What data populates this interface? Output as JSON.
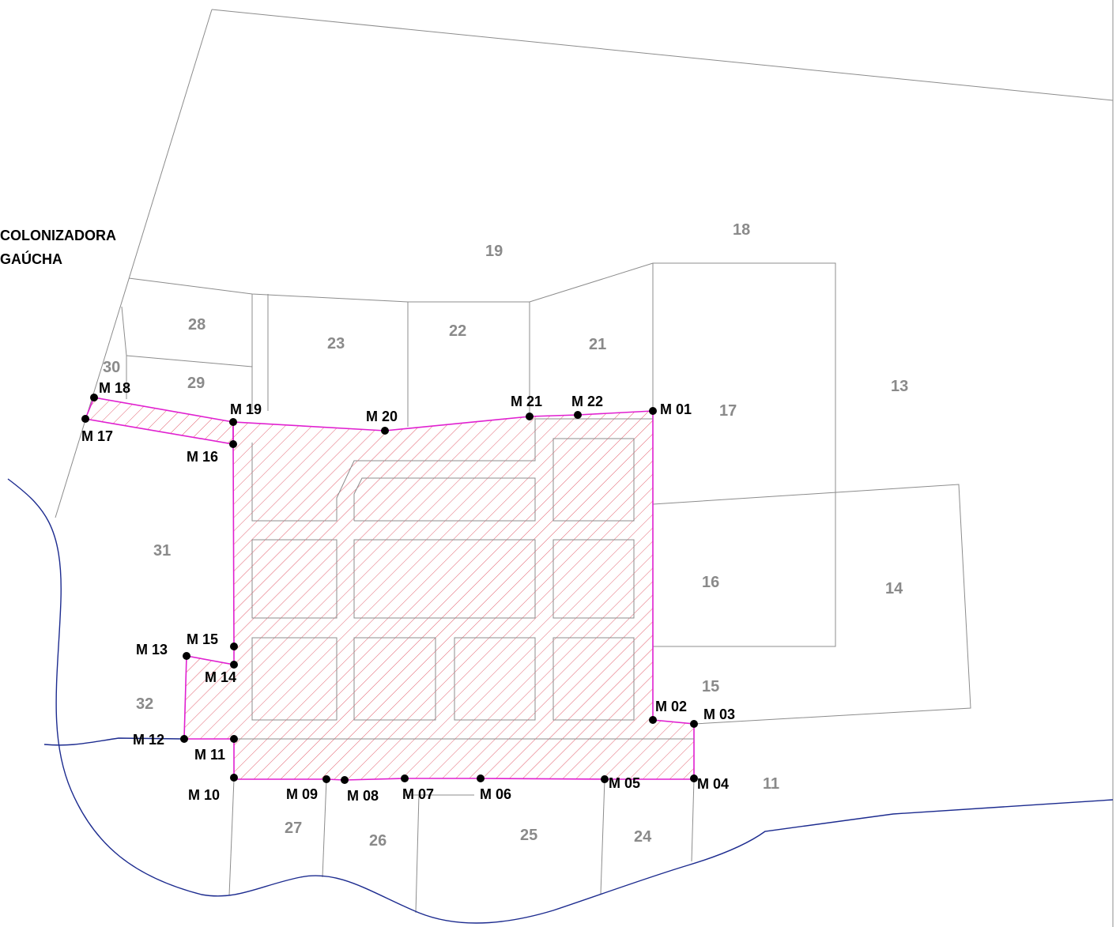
{
  "map": {
    "owner_name_line1": "COLONIZADORA",
    "owner_name_line2": "GAÚCHA",
    "colors": {
      "boundary": "#e020d0",
      "hatch": "#e05060",
      "river": "#1c2b8f",
      "parcel_lines": "#8c8c8c",
      "lot_labels": "#8a8a8a",
      "markers": "#000000"
    },
    "lots": [
      "11",
      "13",
      "14",
      "15",
      "16",
      "17",
      "18",
      "19",
      "21",
      "22",
      "23",
      "24",
      "25",
      "26",
      "27",
      "28",
      "29",
      "30",
      "31",
      "32"
    ],
    "markers": [
      "M 01",
      "M 02",
      "M 03",
      "M 04",
      "M 05",
      "M 06",
      "M 07",
      "M 08",
      "M 09",
      "M 10",
      "M 11",
      "M 12",
      "M 13",
      "M 14",
      "M 15",
      "M 16",
      "M 17",
      "M 18",
      "M 19",
      "M 20",
      "M 21",
      "M 22"
    ]
  }
}
